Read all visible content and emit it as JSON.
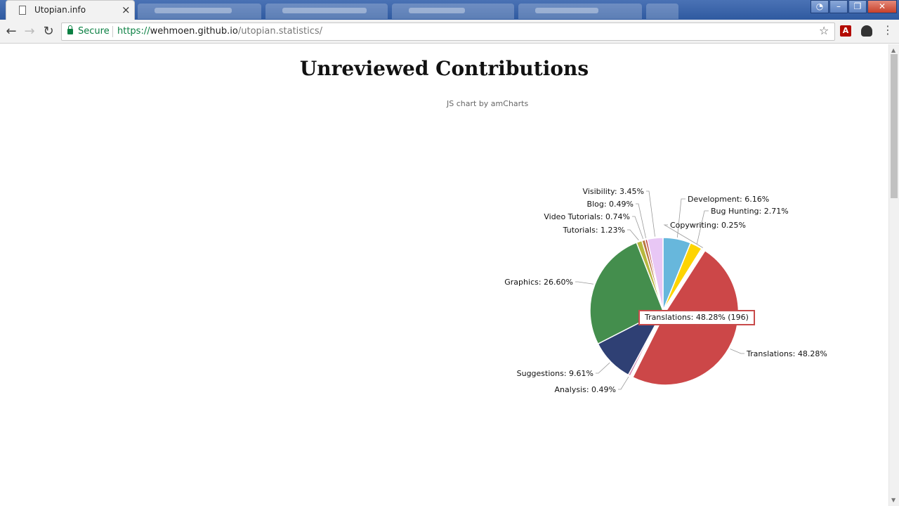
{
  "browser": {
    "tab_title": "Utopian.info",
    "tab_close": "×",
    "secure_label": "Secure",
    "url_scheme": "https://",
    "url_host": "wehmoen.github.io",
    "url_path": "/utopian.statistics/"
  },
  "page": {
    "title": "Unreviewed Contributions",
    "credit": "JS chart by amCharts"
  },
  "tooltip": {
    "text": "Translations: 48.28% (196)"
  },
  "chart_data": {
    "type": "pie",
    "title": "Unreviewed Contributions",
    "slices": [
      {
        "label": "Development",
        "percent": 6.16,
        "color": "#67b7dc"
      },
      {
        "label": "Bug Hunting",
        "percent": 2.71,
        "color": "#fdd400"
      },
      {
        "label": "Copywriting",
        "percent": 0.25,
        "color": "#84b761"
      },
      {
        "label": "Translations",
        "percent": 48.28,
        "value": 196,
        "color": "#cc4748"
      },
      {
        "label": "Analysis",
        "percent": 0.49,
        "color": "#cd82ad"
      },
      {
        "label": "Suggestions",
        "percent": 9.61,
        "color": "#2f4074"
      },
      {
        "label": "Graphics",
        "percent": 26.6,
        "color": "#448e4d"
      },
      {
        "label": "Tutorials",
        "percent": 1.23,
        "color": "#b7b83f"
      },
      {
        "label": "Video Tutorials",
        "percent": 0.74,
        "color": "#b9783f"
      },
      {
        "label": "Blog",
        "percent": 0.49,
        "color": "#b93e3d"
      },
      {
        "label": "Visibility",
        "percent": 3.45,
        "color": "#e8c7f5"
      }
    ],
    "labels": [
      "Development: 6.16%",
      "Bug Hunting: 2.71%",
      "Copywriting: 0.25%",
      "Translations: 48.28%",
      "Analysis: 0.49%",
      "Suggestions: 9.61%",
      "Graphics: 26.60%",
      "Tutorials: 1.23%",
      "Video Tutorials: 0.74%",
      "Blog: 0.49%",
      "Visibility: 3.45%"
    ]
  }
}
